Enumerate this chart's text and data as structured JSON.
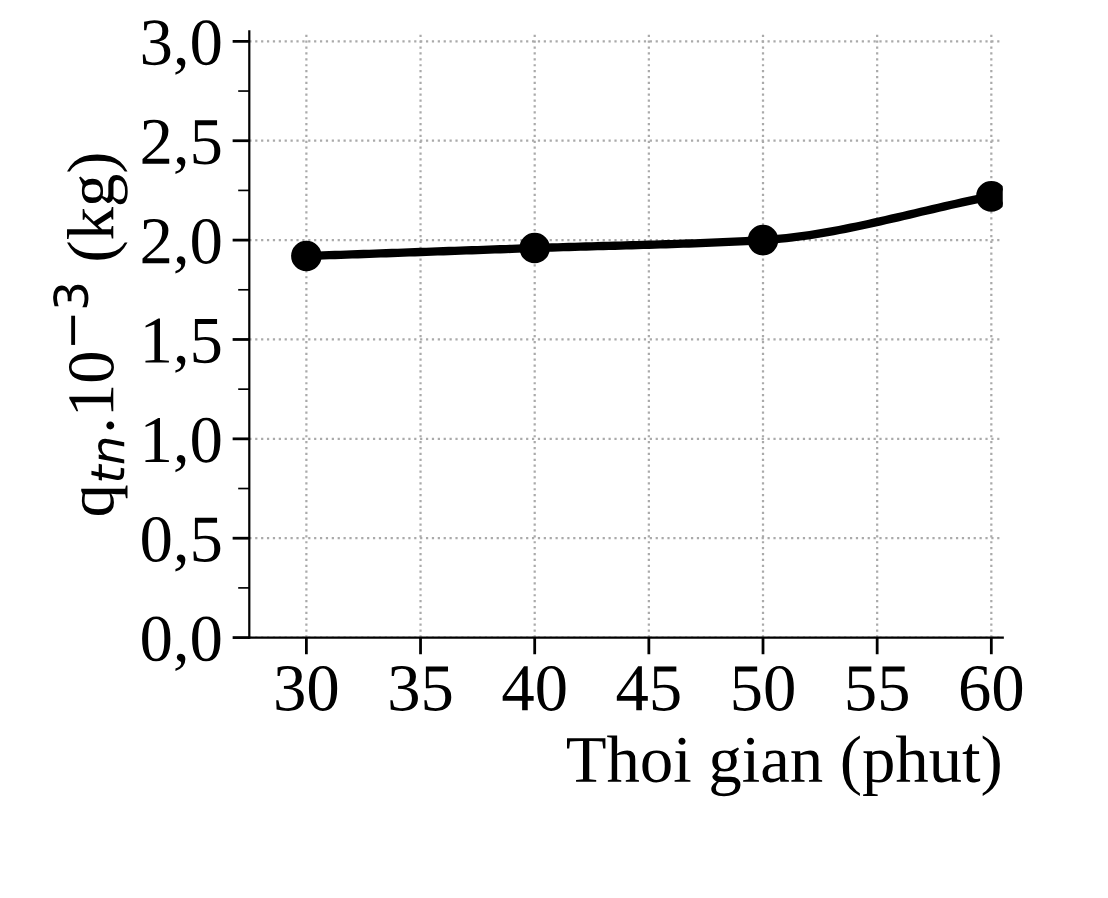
{
  "chart_data": {
    "type": "line",
    "xlabel": "Thoi gian (phut)",
    "ylabel": "q$_{tn}$.10$^{−3}$ (kg)",
    "x": [
      30,
      40,
      50,
      60
    ],
    "series": [
      {
        "color": "#000000",
        "values": [
          1.92,
          1.96,
          2.0,
          2.22
        ]
      }
    ],
    "xlim": [
      27.5,
      60.5
    ],
    "ylim": [
      0,
      3.05
    ],
    "xticks": [
      30,
      35,
      40,
      45,
      50,
      55,
      60
    ],
    "yticks": [
      {
        "value": 0,
        "label": "0,0"
      },
      {
        "value": 0.5,
        "label": "0,5"
      },
      {
        "value": 1.0,
        "label": "1,0"
      },
      {
        "value": 1.5,
        "label": "1,5"
      },
      {
        "value": 2.0,
        "label": "2,0"
      },
      {
        "value": 2.5,
        "label": "2,5"
      },
      {
        "value": 3.0,
        "label": "3,0"
      }
    ],
    "grid": true,
    "marker": "circle",
    "line_style": "solid",
    "legend": false
  }
}
